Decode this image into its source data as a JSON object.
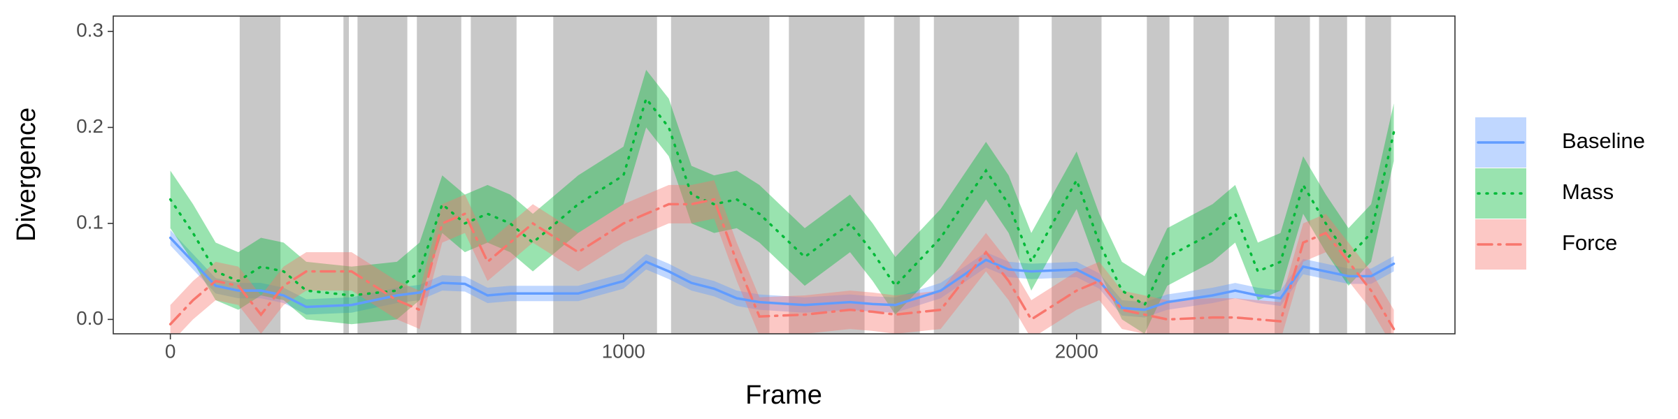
{
  "chart_data": {
    "type": "line",
    "xlabel": "Frame",
    "ylabel": "Divergence",
    "xlim": [
      -126,
      2835
    ],
    "ylim": [
      -0.015,
      0.316
    ],
    "xticks": [
      0,
      1000,
      2000
    ],
    "yticks": [
      {
        "value": 0,
        "label": "0.0"
      },
      0.1,
      0.2,
      0.3
    ],
    "grid": false,
    "legend": "right",
    "shaded_color": "#c8c8c8",
    "shaded_regions": [
      [
        153,
        243
      ],
      [
        382,
        394
      ],
      [
        413,
        523
      ],
      [
        544,
        642
      ],
      [
        663,
        764
      ],
      [
        845,
        1074
      ],
      [
        1105,
        1322
      ],
      [
        1365,
        1532
      ],
      [
        1597,
        1654
      ],
      [
        1685,
        1873
      ],
      [
        1945,
        2055
      ],
      [
        2155,
        2205
      ],
      [
        2258,
        2336
      ],
      [
        2437,
        2515
      ],
      [
        2535,
        2597
      ],
      [
        2637,
        2694
      ]
    ],
    "x": [
      0,
      50,
      100,
      150,
      200,
      250,
      300,
      400,
      500,
      550,
      600,
      650,
      700,
      750,
      800,
      900,
      1000,
      1050,
      1100,
      1150,
      1200,
      1250,
      1300,
      1400,
      1500,
      1550,
      1600,
      1700,
      1800,
      1850,
      1900,
      2000,
      2050,
      2100,
      2150,
      2200,
      2300,
      2350,
      2400,
      2450,
      2500,
      2550,
      2600,
      2650,
      2700
    ],
    "series": [
      {
        "name": "Baseline",
        "color": "#619CFF",
        "dash": "solid",
        "values": [
          0.085,
          0.06,
          0.035,
          0.03,
          0.03,
          0.025,
          0.013,
          0.015,
          0.025,
          0.028,
          0.038,
          0.037,
          0.025,
          0.027,
          0.027,
          0.027,
          0.04,
          0.06,
          0.05,
          0.038,
          0.032,
          0.022,
          0.018,
          0.015,
          0.018,
          0.016,
          0.015,
          0.03,
          0.062,
          0.052,
          0.05,
          0.052,
          0.04,
          0.012,
          0.01,
          0.018,
          0.025,
          0.03,
          0.025,
          0.022,
          0.055,
          0.05,
          0.045,
          0.045,
          0.058
        ],
        "lower": [
          0.077,
          0.052,
          0.027,
          0.022,
          0.022,
          0.017,
          0.005,
          0.007,
          0.017,
          0.02,
          0.03,
          0.029,
          0.017,
          0.019,
          0.019,
          0.019,
          0.032,
          0.052,
          0.042,
          0.03,
          0.024,
          0.014,
          0.01,
          0.007,
          0.01,
          0.008,
          0.007,
          0.022,
          0.054,
          0.044,
          0.042,
          0.044,
          0.032,
          0.004,
          0.002,
          0.01,
          0.017,
          0.022,
          0.017,
          0.014,
          0.047,
          0.042,
          0.037,
          0.037,
          0.05
        ],
        "upper": [
          0.093,
          0.068,
          0.043,
          0.038,
          0.038,
          0.033,
          0.021,
          0.023,
          0.033,
          0.036,
          0.046,
          0.045,
          0.033,
          0.035,
          0.035,
          0.035,
          0.048,
          0.068,
          0.058,
          0.046,
          0.04,
          0.03,
          0.026,
          0.023,
          0.026,
          0.024,
          0.023,
          0.038,
          0.07,
          0.06,
          0.058,
          0.06,
          0.048,
          0.02,
          0.018,
          0.026,
          0.033,
          0.038,
          0.033,
          0.03,
          0.063,
          0.058,
          0.053,
          0.053,
          0.066
        ]
      },
      {
        "name": "Mass",
        "color": "#00BA38",
        "dash": "dotted",
        "values": [
          0.125,
          0.09,
          0.05,
          0.04,
          0.055,
          0.05,
          0.03,
          0.025,
          0.03,
          0.05,
          0.12,
          0.1,
          0.11,
          0.1,
          0.08,
          0.12,
          0.15,
          0.23,
          0.2,
          0.13,
          0.12,
          0.125,
          0.11,
          0.065,
          0.1,
          0.07,
          0.035,
          0.085,
          0.155,
          0.12,
          0.06,
          0.145,
          0.08,
          0.03,
          0.015,
          0.065,
          0.09,
          0.11,
          0.05,
          0.06,
          0.14,
          0.1,
          0.065,
          0.09,
          0.195
        ],
        "lower": [
          0.095,
          0.06,
          0.02,
          0.01,
          0.025,
          0.02,
          0,
          -0.005,
          0,
          0.02,
          0.09,
          0.07,
          0.08,
          0.07,
          0.05,
          0.09,
          0.12,
          0.2,
          0.17,
          0.1,
          0.09,
          0.095,
          0.08,
          0.035,
          0.07,
          0.04,
          0.005,
          0.055,
          0.125,
          0.09,
          0.03,
          0.115,
          0.05,
          0,
          -0.015,
          0.035,
          0.06,
          0.08,
          0.02,
          0.03,
          0.11,
          0.07,
          0.035,
          0.06,
          0.165
        ],
        "upper": [
          0.155,
          0.12,
          0.08,
          0.07,
          0.085,
          0.08,
          0.06,
          0.055,
          0.06,
          0.08,
          0.15,
          0.13,
          0.14,
          0.13,
          0.11,
          0.15,
          0.18,
          0.26,
          0.23,
          0.16,
          0.15,
          0.155,
          0.14,
          0.095,
          0.13,
          0.1,
          0.065,
          0.115,
          0.185,
          0.15,
          0.09,
          0.175,
          0.11,
          0.06,
          0.045,
          0.095,
          0.12,
          0.14,
          0.08,
          0.09,
          0.17,
          0.13,
          0.095,
          0.12,
          0.225
        ]
      },
      {
        "name": "Force",
        "color": "#F8766D",
        "dash": "dotdash",
        "values": [
          -0.005,
          0.02,
          0.04,
          0.035,
          0.005,
          0.035,
          0.05,
          0.05,
          0.02,
          0.01,
          0.1,
          0.11,
          0.06,
          0.08,
          0.1,
          0.07,
          0.1,
          0.11,
          0.12,
          0.12,
          0.125,
          0.06,
          0.003,
          0.005,
          0.01,
          0.008,
          0.005,
          0.01,
          0.07,
          0.04,
          0,
          0.03,
          0.04,
          0.01,
          0.005,
          0,
          0.002,
          0.002,
          0,
          -0.002,
          0.08,
          0.09,
          0.06,
          0.03,
          -0.01
        ],
        "lower": [
          -0.025,
          0,
          0.02,
          0.015,
          -0.015,
          0.015,
          0.03,
          0.03,
          0,
          -0.01,
          0.08,
          0.09,
          0.04,
          0.06,
          0.08,
          0.05,
          0.08,
          0.09,
          0.1,
          0.1,
          0.105,
          0.04,
          -0.017,
          -0.015,
          -0.01,
          -0.012,
          -0.015,
          -0.01,
          0.05,
          0.02,
          -0.02,
          0.01,
          0.02,
          -0.01,
          -0.015,
          -0.02,
          -0.018,
          -0.018,
          -0.02,
          -0.022,
          0.06,
          0.07,
          0.04,
          0.01,
          -0.03
        ],
        "upper": [
          0.015,
          0.04,
          0.06,
          0.055,
          0.025,
          0.055,
          0.07,
          0.07,
          0.04,
          0.03,
          0.12,
          0.13,
          0.08,
          0.1,
          0.12,
          0.09,
          0.12,
          0.13,
          0.14,
          0.14,
          0.145,
          0.08,
          0.023,
          0.025,
          0.03,
          0.028,
          0.025,
          0.03,
          0.09,
          0.06,
          0.02,
          0.05,
          0.06,
          0.03,
          0.025,
          0.02,
          0.022,
          0.022,
          0.02,
          0.018,
          0.1,
          0.11,
          0.08,
          0.05,
          0.01
        ]
      }
    ]
  }
}
